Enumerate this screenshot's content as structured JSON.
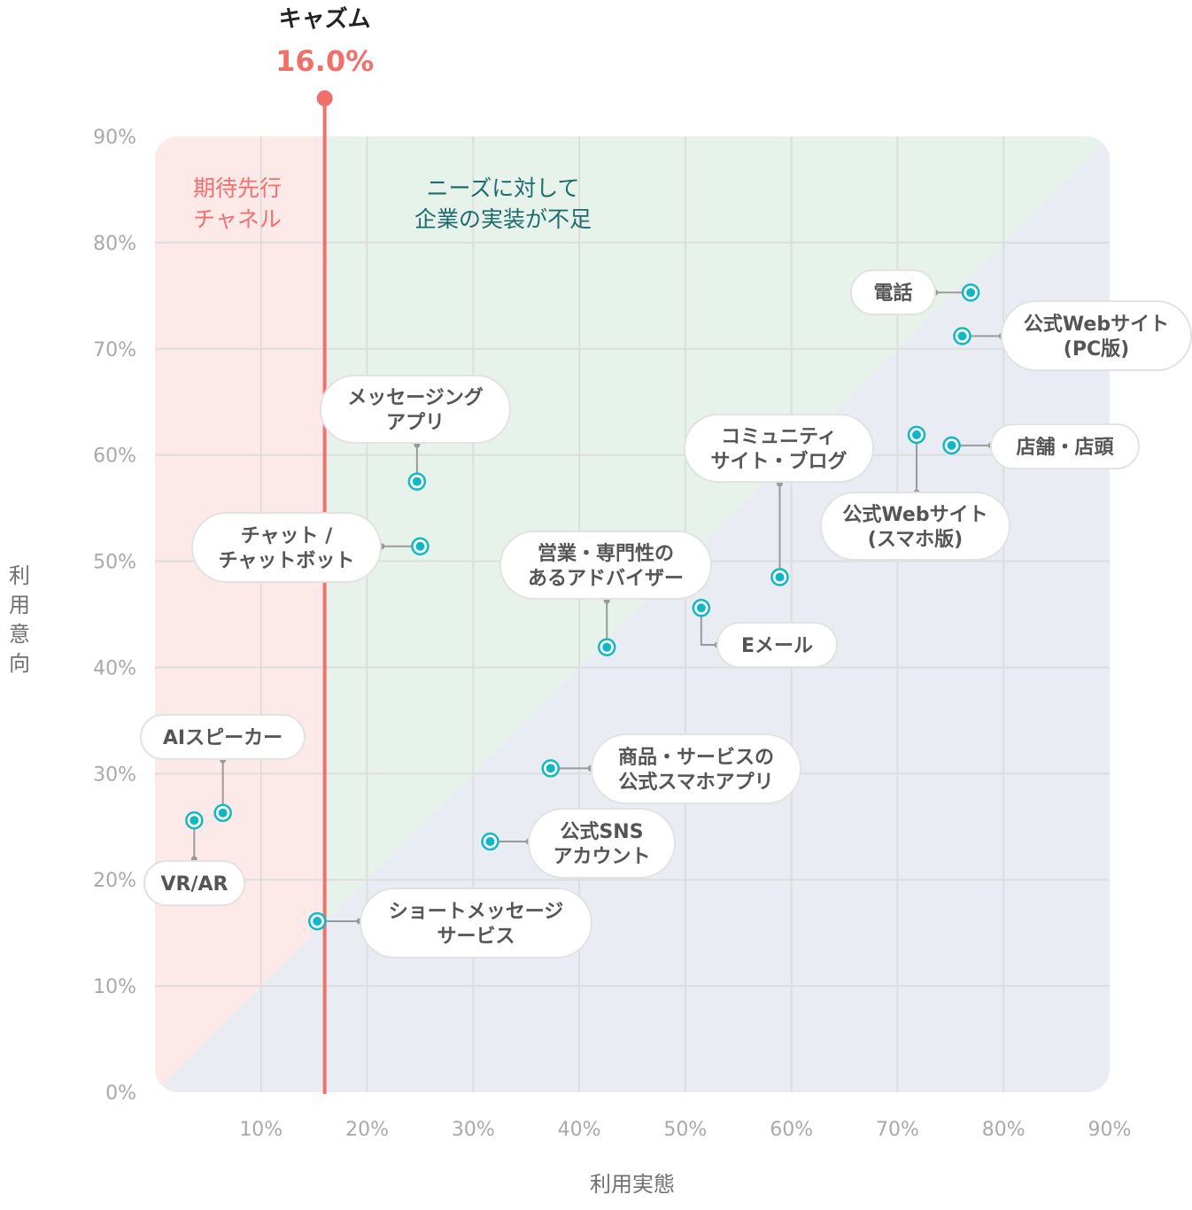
{
  "chart_data": {
    "type": "scatter",
    "xlabel": "利用実態",
    "ylabel": "利用意向",
    "xlim": [
      0,
      90
    ],
    "ylim": [
      0,
      90
    ],
    "x_ticks": [
      "10%",
      "20%",
      "30%",
      "40%",
      "50%",
      "60%",
      "70%",
      "80%",
      "90%"
    ],
    "y_ticks": [
      "0%",
      "10%",
      "20%",
      "30%",
      "40%",
      "50%",
      "60%",
      "70%",
      "80%",
      "90%"
    ],
    "chasm": {
      "title": "キャズム",
      "value_label": "16.0%",
      "value": 16.0,
      "color": "#f2706c"
    },
    "regions": [
      {
        "lines": [
          "期待先行",
          "チャネル"
        ],
        "color": "#fde9e8"
      },
      {
        "lines": [
          "ニーズに対して",
          "企業の実装が不足"
        ],
        "color": "#e7f3ea"
      },
      {
        "color": "#e9edf3"
      }
    ],
    "point_color": "#10b7c4",
    "points": [
      {
        "x": 76.9,
        "y": 75.3,
        "lines": [
          "電話"
        ]
      },
      {
        "x": 76.1,
        "y": 71.2,
        "lines": [
          "公式Webサイト",
          "(PC版)"
        ]
      },
      {
        "x": 75.1,
        "y": 60.9,
        "lines": [
          "店舗・店頭"
        ]
      },
      {
        "x": 71.8,
        "y": 61.9,
        "lines": [
          "公式Webサイト",
          "(スマホ版)"
        ]
      },
      {
        "x": 58.9,
        "y": 48.5,
        "lines": [
          "コミュニティ",
          "サイト・ブログ"
        ]
      },
      {
        "x": 51.5,
        "y": 45.6,
        "lines": [
          "Eメール"
        ]
      },
      {
        "x": 42.6,
        "y": 41.9,
        "lines": [
          "営業・専門性の",
          "あるアドバイザー"
        ]
      },
      {
        "x": 24.7,
        "y": 57.5,
        "lines": [
          "メッセージング",
          "アプリ"
        ]
      },
      {
        "x": 25.0,
        "y": 51.4,
        "lines": [
          "チャット /",
          "チャットボット"
        ]
      },
      {
        "x": 37.3,
        "y": 30.5,
        "lines": [
          "商品・サービスの",
          "公式スマホアプリ"
        ]
      },
      {
        "x": 31.6,
        "y": 23.6,
        "lines": [
          "公式SNS",
          "アカウント"
        ]
      },
      {
        "x": 15.3,
        "y": 16.1,
        "lines": [
          "ショートメッセージ",
          "サービス"
        ]
      },
      {
        "x": 6.4,
        "y": 26.3,
        "lines": [
          "AIスピーカー"
        ]
      },
      {
        "x": 3.7,
        "y": 25.6,
        "lines": [
          "VR/AR"
        ]
      }
    ]
  }
}
